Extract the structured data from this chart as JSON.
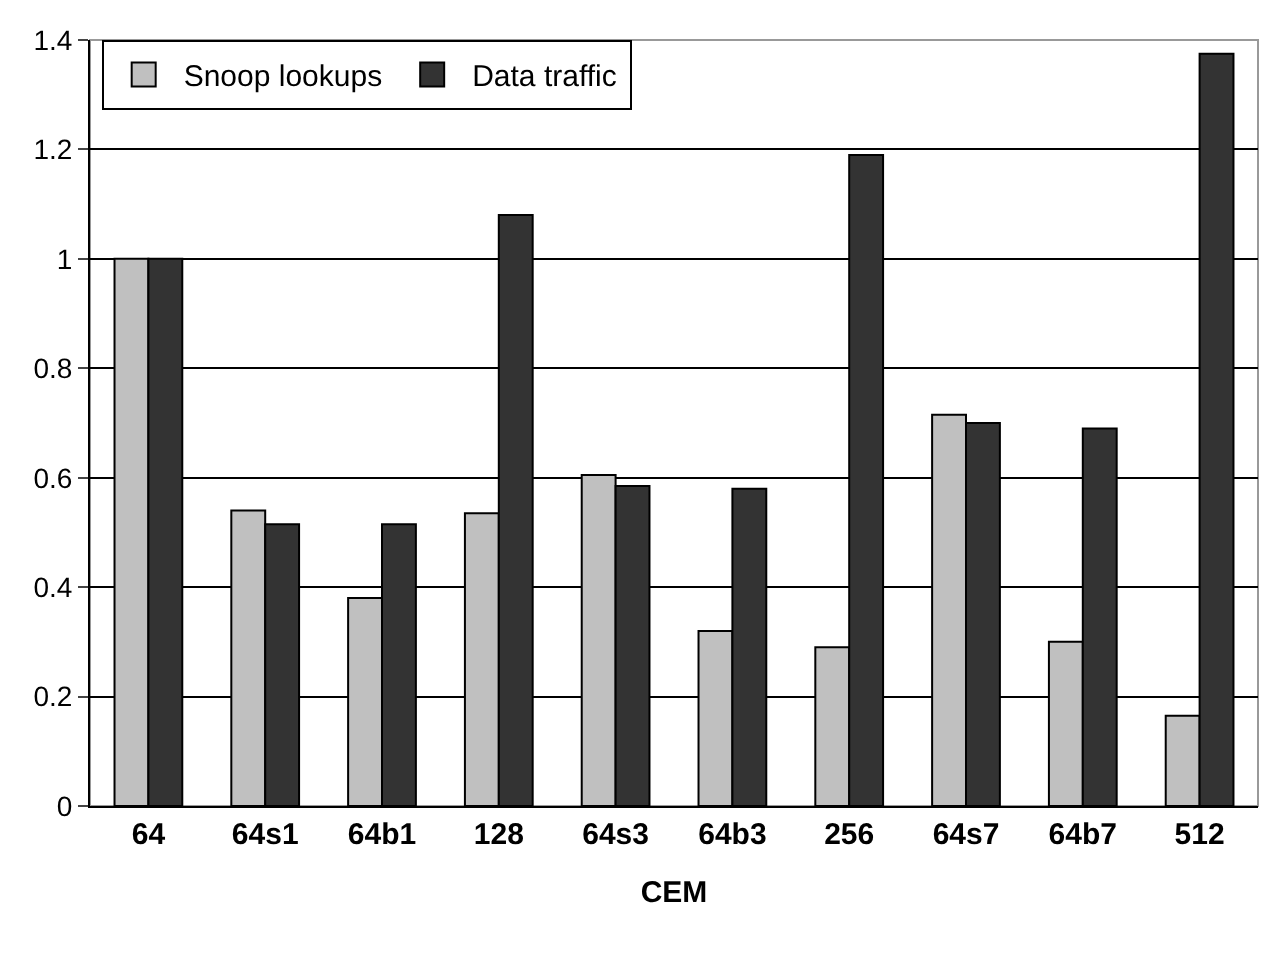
{
  "chart_data": {
    "type": "bar",
    "xlabel": "CEM",
    "categories": [
      "64",
      "64s1",
      "64b1",
      "128",
      "64s3",
      "64b3",
      "256",
      "64s7",
      "64b7",
      "512"
    ],
    "series": [
      {
        "name": "Snoop lookups",
        "color": "#c0c0c0",
        "values": [
          1.0,
          0.54,
          0.38,
          0.535,
          0.605,
          0.32,
          0.29,
          0.715,
          0.3,
          0.165
        ]
      },
      {
        "name": "Data traffic",
        "color": "#333333",
        "values": [
          1.0,
          0.515,
          0.515,
          1.08,
          0.585,
          0.58,
          1.19,
          0.7,
          0.69,
          1.375
        ]
      }
    ],
    "ylim": [
      0,
      1.4
    ],
    "yticks": [
      0,
      0.2,
      0.4,
      0.6,
      0.8,
      1,
      1.2,
      1.4
    ],
    "grid": "y",
    "legend": "top left"
  }
}
